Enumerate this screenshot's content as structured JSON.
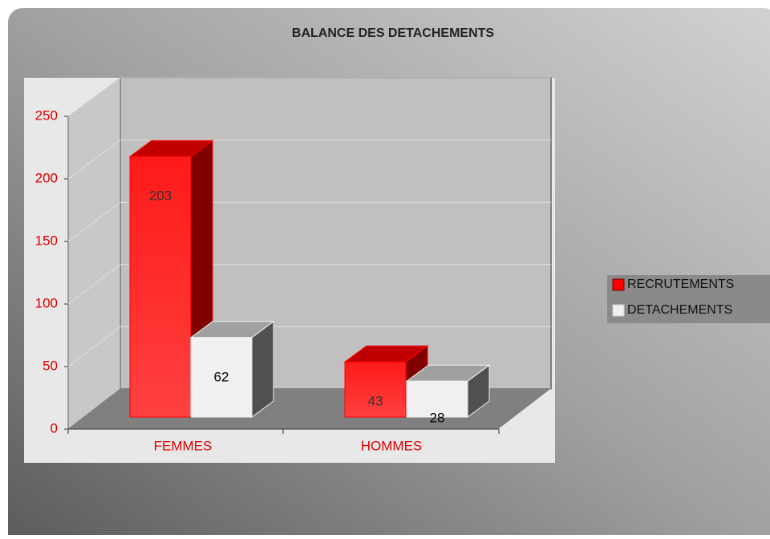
{
  "chart_data": {
    "type": "bar3d",
    "title": "BALANCE DES DETACHEMENTS",
    "categories": [
      "FEMMES",
      "HOMMES"
    ],
    "series": [
      {
        "name": "RECRUTEMENTS",
        "color": "#ff0000",
        "values": [
          203,
          43
        ]
      },
      {
        "name": "DETACHEMENTS",
        "color": "#f0f0f0",
        "values": [
          62,
          28
        ]
      }
    ],
    "ylim": [
      0,
      250
    ],
    "yticks": [
      0,
      50,
      100,
      150,
      200,
      250
    ],
    "grid": true,
    "legend": "right"
  }
}
